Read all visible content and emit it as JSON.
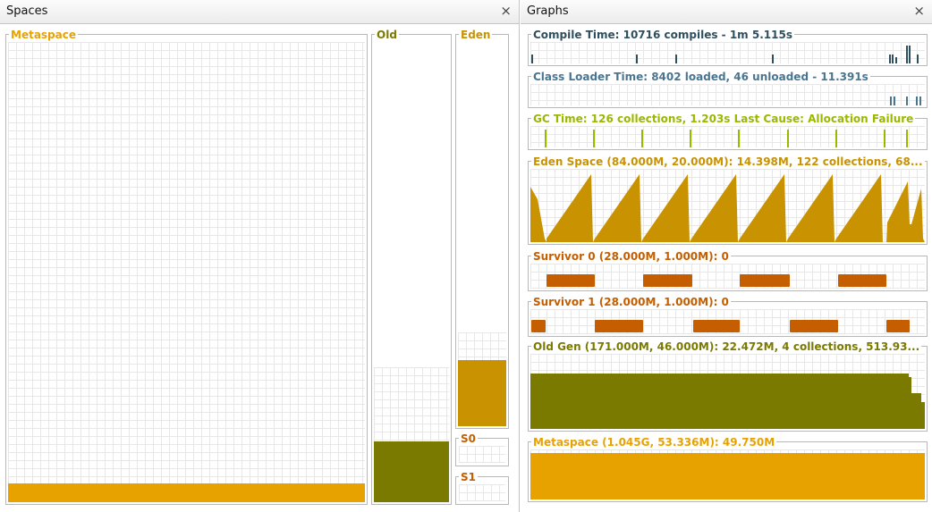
{
  "spaces": {
    "title": "Spaces",
    "close": "×",
    "metaspace": {
      "label": "Metaspace",
      "color": "#e8a200",
      "fill_level": 0.04
    },
    "old": {
      "label": "Old",
      "color": "#7a7a00",
      "capacity_level": 0.29,
      "fill_level": 0.13
    },
    "eden": {
      "label": "Eden",
      "color": "#c99200",
      "capacity_level": 0.24,
      "fill_level": 0.17
    },
    "s0": {
      "label": "S0"
    },
    "s1": {
      "label": "S1"
    }
  },
  "graphs": {
    "title": "Graphs",
    "close": "×",
    "items": [
      {
        "label": "Compile Time: 10716 compiles - 1m 5.115s",
        "color": "#2f4f5f"
      },
      {
        "label": "Class Loader Time: 8402 loaded, 46 unloaded - 11.391s",
        "color": "#4a7591"
      },
      {
        "label": "GC Time: 126 collections, 1.203s  Last Cause: Allocation Failure",
        "color": "#9ab800"
      },
      {
        "label": "Eden Space (84.000M, 20.000M): 14.398M, 122 collections, 68...",
        "color": "#c99200"
      },
      {
        "label": "Survivor 0 (28.000M, 1.000M): 0",
        "color": "#c45e00"
      },
      {
        "label": "Survivor 1 (28.000M, 1.000M): 0",
        "color": "#c45e00"
      },
      {
        "label": "Old Gen (171.000M, 46.000M): 22.472M, 4 collections, 513.93...",
        "color": "#7a7a00"
      },
      {
        "label": "Metaspace (1.045G, 53.336M): 49.750M",
        "color": "#e8a200"
      }
    ]
  }
}
